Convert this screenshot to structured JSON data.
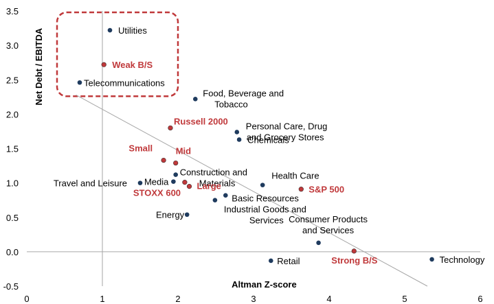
{
  "chart_data": {
    "type": "scatter",
    "xlabel": "Altman Z-score",
    "ylabel": "Net Debt / EBITDA",
    "xlim": [
      0,
      6
    ],
    "ylim": [
      -0.5,
      3.5
    ],
    "xticks": [
      "0",
      "1",
      "2",
      "3",
      "4",
      "5",
      "6"
    ],
    "yticks": [
      "-0.5",
      "0.0",
      "0.5",
      "1.0",
      "1.5",
      "2.0",
      "2.5",
      "3.0",
      "3.5"
    ],
    "grid": false,
    "trendline": {
      "from": [
        0.65,
        2.28
      ],
      "to": [
        5.3,
        -0.5
      ]
    },
    "highlight_box": {
      "x": [
        0.4,
        2.0
      ],
      "y": [
        2.26,
        3.48
      ]
    },
    "colors": {
      "sector": "#1f3b5e",
      "index": "#c0393b",
      "trend": "#a6a6a6",
      "box": "#c0393b"
    },
    "points": [
      {
        "label": "Utilities",
        "x": 1.1,
        "y": 3.22,
        "group": "sector"
      },
      {
        "label": "Weak B/S",
        "x": 1.02,
        "y": 2.72,
        "group": "index"
      },
      {
        "label": "Telecommunications",
        "x": 0.7,
        "y": 2.46,
        "group": "sector"
      },
      {
        "label": "Food, Beverage and Tobacco",
        "x": 2.23,
        "y": 2.22,
        "group": "sector"
      },
      {
        "label": "Russell 2000",
        "x": 1.9,
        "y": 1.8,
        "group": "index"
      },
      {
        "label": "Personal Care, Drug and Grocery Stores",
        "x": 2.78,
        "y": 1.74,
        "group": "sector"
      },
      {
        "label": "Chemicals",
        "x": 2.81,
        "y": 1.63,
        "group": "sector"
      },
      {
        "label": "Small",
        "x": 1.81,
        "y": 1.33,
        "group": "index"
      },
      {
        "label": "Mid",
        "x": 1.97,
        "y": 1.29,
        "group": "index"
      },
      {
        "label": "Construction and Materials",
        "x": 1.97,
        "y": 1.12,
        "group": "sector"
      },
      {
        "label": "Media",
        "x": 1.94,
        "y": 1.02,
        "group": "sector"
      },
      {
        "label": "Travel and Leisure",
        "x": 1.5,
        "y": 1.0,
        "group": "sector"
      },
      {
        "label": "STOXX 600",
        "x": 2.09,
        "y": 1.01,
        "group": "index"
      },
      {
        "label": "Large",
        "x": 2.15,
        "y": 0.95,
        "group": "index"
      },
      {
        "label": "Health Care",
        "x": 3.12,
        "y": 0.97,
        "group": "sector"
      },
      {
        "label": "S&P 500",
        "x": 3.63,
        "y": 0.91,
        "group": "index"
      },
      {
        "label": "Basic Resources",
        "x": 2.63,
        "y": 0.82,
        "group": "sector"
      },
      {
        "label": "Industrial Goods and Services",
        "x": 2.49,
        "y": 0.75,
        "group": "sector"
      },
      {
        "label": "Energy",
        "x": 2.12,
        "y": 0.54,
        "group": "sector"
      },
      {
        "label": "Consumer Products and Services",
        "x": 3.86,
        "y": 0.13,
        "group": "sector"
      },
      {
        "label": "Strong B/S",
        "x": 4.33,
        "y": 0.01,
        "group": "index"
      },
      {
        "label": "Retail",
        "x": 3.23,
        "y": -0.13,
        "group": "sector"
      },
      {
        "label": "Technology",
        "x": 5.36,
        "y": -0.11,
        "group": "sector"
      }
    ]
  }
}
